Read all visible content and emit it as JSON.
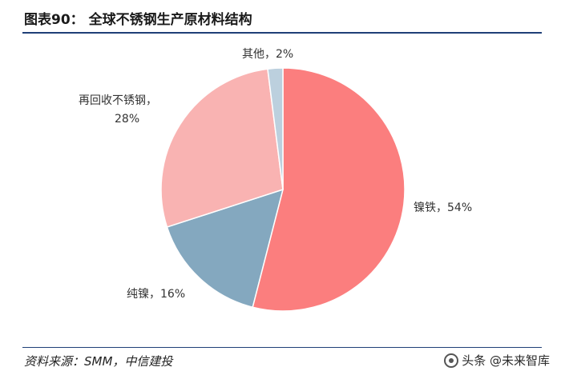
{
  "header": {
    "title": "图表90：  全球不锈钢生产原材料结构"
  },
  "footer": {
    "source": "资料来源：SMM，中信建投",
    "watermark": "头条 @未来智库"
  },
  "chart_data": {
    "type": "pie",
    "title": "",
    "series": [
      {
        "label": "镍铁，54%",
        "category": "镍铁",
        "value": 54,
        "color": "#fb7e7e"
      },
      {
        "label": "纯镍，16%",
        "category": "纯镍",
        "value": 16,
        "color": "#84a8bf"
      },
      {
        "label": "再回收不锈钢，28%",
        "category": "再回收不锈钢",
        "value": 28,
        "color": "#f9b3b2"
      },
      {
        "label": "其他，2%",
        "category": "其他",
        "value": 2,
        "color": "#bcd0de"
      }
    ],
    "start_angle_deg": 0,
    "direction": "clockwise",
    "legend": "none"
  }
}
